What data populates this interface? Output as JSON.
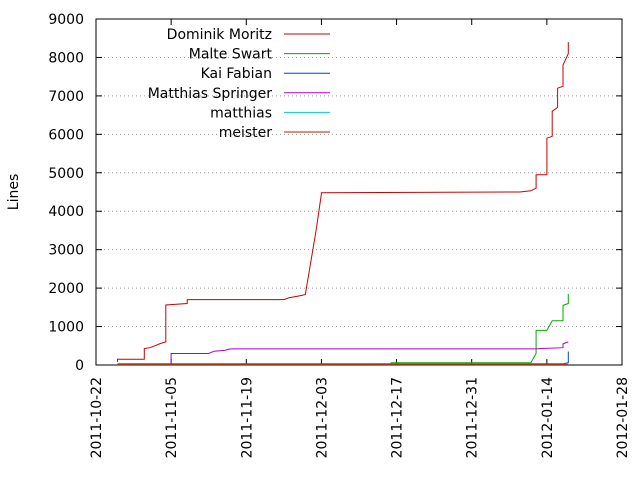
{
  "chart_data": {
    "type": "line",
    "title": "",
    "xlabel": "",
    "ylabel": "Lines",
    "x_type": "date",
    "xlim": [
      "2011-10-22",
      "2012-01-28"
    ],
    "ylim": [
      0,
      9000
    ],
    "x_ticks": [
      "2011-10-22",
      "2011-11-05",
      "2011-11-19",
      "2011-12-03",
      "2011-12-17",
      "2011-12-31",
      "2012-01-14",
      "2012-01-28"
    ],
    "y_ticks": [
      "0",
      "1000",
      "2000",
      "3000",
      "4000",
      "5000",
      "6000",
      "7000",
      "8000",
      "9000"
    ],
    "grid": "horizontal dotted",
    "legend_position": "top-left",
    "series": [
      {
        "name": "Dominik Moritz",
        "color": "#cc0000",
        "points": [
          [
            "2011-10-26",
            80
          ],
          [
            "2011-10-26",
            150
          ],
          [
            "2011-10-31",
            150
          ],
          [
            "2011-10-31",
            430
          ],
          [
            "2011-11-01",
            450
          ],
          [
            "2011-11-02",
            500
          ],
          [
            "2011-11-03",
            560
          ],
          [
            "2011-11-04",
            600
          ],
          [
            "2011-11-04",
            1560
          ],
          [
            "2011-11-06",
            1580
          ],
          [
            "2011-11-08",
            1600
          ],
          [
            "2011-11-08",
            1700
          ],
          [
            "2011-11-26",
            1700
          ],
          [
            "2011-11-27",
            1750
          ],
          [
            "2011-11-29",
            1800
          ],
          [
            "2011-11-30",
            1830
          ],
          [
            "2011-12-02",
            3500
          ],
          [
            "2011-12-03",
            4450
          ],
          [
            "2011-12-03",
            4480
          ],
          [
            "2012-01-09",
            4500
          ],
          [
            "2012-01-11",
            4530
          ],
          [
            "2012-01-12",
            4600
          ],
          [
            "2012-01-12",
            4950
          ],
          [
            "2012-01-14",
            4950
          ],
          [
            "2012-01-14",
            5900
          ],
          [
            "2012-01-15",
            5950
          ],
          [
            "2012-01-15",
            6600
          ],
          [
            "2012-01-16",
            6700
          ],
          [
            "2012-01-16",
            7200
          ],
          [
            "2012-01-17",
            7250
          ],
          [
            "2012-01-17",
            7800
          ],
          [
            "2012-01-18",
            8100
          ],
          [
            "2012-01-18",
            8400
          ]
        ]
      },
      {
        "name": "Malte Swart",
        "color": "#00aa00",
        "points": [
          [
            "2011-12-16",
            0
          ],
          [
            "2011-12-16",
            60
          ],
          [
            "2012-01-11",
            60
          ],
          [
            "2012-01-12",
            300
          ],
          [
            "2012-01-12",
            900
          ],
          [
            "2012-01-14",
            900
          ],
          [
            "2012-01-15",
            1150
          ],
          [
            "2012-01-17",
            1150
          ],
          [
            "2012-01-17",
            1550
          ],
          [
            "2012-01-18",
            1600
          ],
          [
            "2012-01-18",
            1850
          ]
        ]
      },
      {
        "name": "Kai Fabian",
        "color": "#0044cc",
        "points": [
          [
            "2011-10-26",
            30
          ],
          [
            "2012-01-17",
            30
          ],
          [
            "2012-01-18",
            60
          ],
          [
            "2012-01-18",
            350
          ]
        ]
      },
      {
        "name": "Matthias Springer",
        "color": "#aa00cc",
        "points": [
          [
            "2011-11-05",
            0
          ],
          [
            "2011-11-05",
            300
          ],
          [
            "2011-11-12",
            300
          ],
          [
            "2011-11-13",
            360
          ],
          [
            "2011-11-15",
            380
          ],
          [
            "2011-11-16",
            420
          ],
          [
            "2012-01-12",
            420
          ],
          [
            "2012-01-13",
            430
          ],
          [
            "2012-01-17",
            450
          ],
          [
            "2012-01-17",
            550
          ],
          [
            "2012-01-18",
            600
          ]
        ]
      },
      {
        "name": "matthias",
        "color": "#00cccc",
        "points": [
          [
            "2011-10-26",
            20
          ],
          [
            "2012-01-18",
            20
          ]
        ]
      },
      {
        "name": "meister",
        "color": "#aa2200",
        "points": [
          [
            "2011-10-26",
            10
          ],
          [
            "2012-01-18",
            10
          ]
        ]
      }
    ]
  }
}
